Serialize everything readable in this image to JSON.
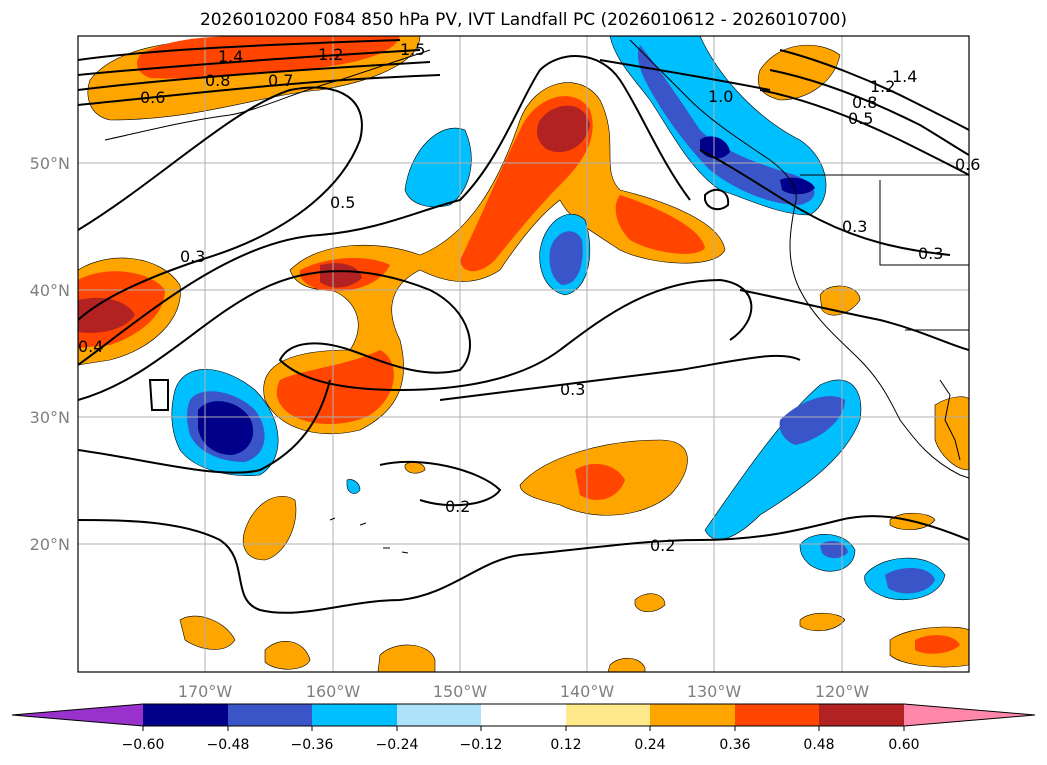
{
  "title": "2026010200 F084 850 hPa PV, IVT Landfall PC (2026010612 - 2026010700)",
  "map": {
    "lat_labels": [
      "50°N",
      "40°N",
      "30°N",
      "20°N"
    ],
    "lon_labels": [
      "170°W",
      "160°W",
      "150°W",
      "140°W",
      "130°W",
      "120°W"
    ],
    "contour_labels": [
      "1.4",
      "1.2",
      "1.5",
      "0.8",
      "0.7",
      "0.6",
      "0.5",
      "0.3",
      "0.4",
      "0.3",
      "0.2",
      "0.2",
      "1.4",
      "1.2",
      "0.8",
      "0.5",
      "0.6",
      "0.3",
      "0.3",
      "1.0"
    ]
  },
  "colorbar": {
    "ticks": [
      "−0.60",
      "−0.48",
      "−0.36",
      "−0.24",
      "−0.12",
      "0.12",
      "0.24",
      "0.36",
      "0.48",
      "0.60"
    ],
    "colors": [
      "#9932cc",
      "#00008b",
      "#3a55c8",
      "#00bfff",
      "#aee2fb",
      "#ffffff",
      "#ffe98a",
      "#ffa500",
      "#ff4500",
      "#b22222",
      "#ff88aa"
    ]
  }
}
